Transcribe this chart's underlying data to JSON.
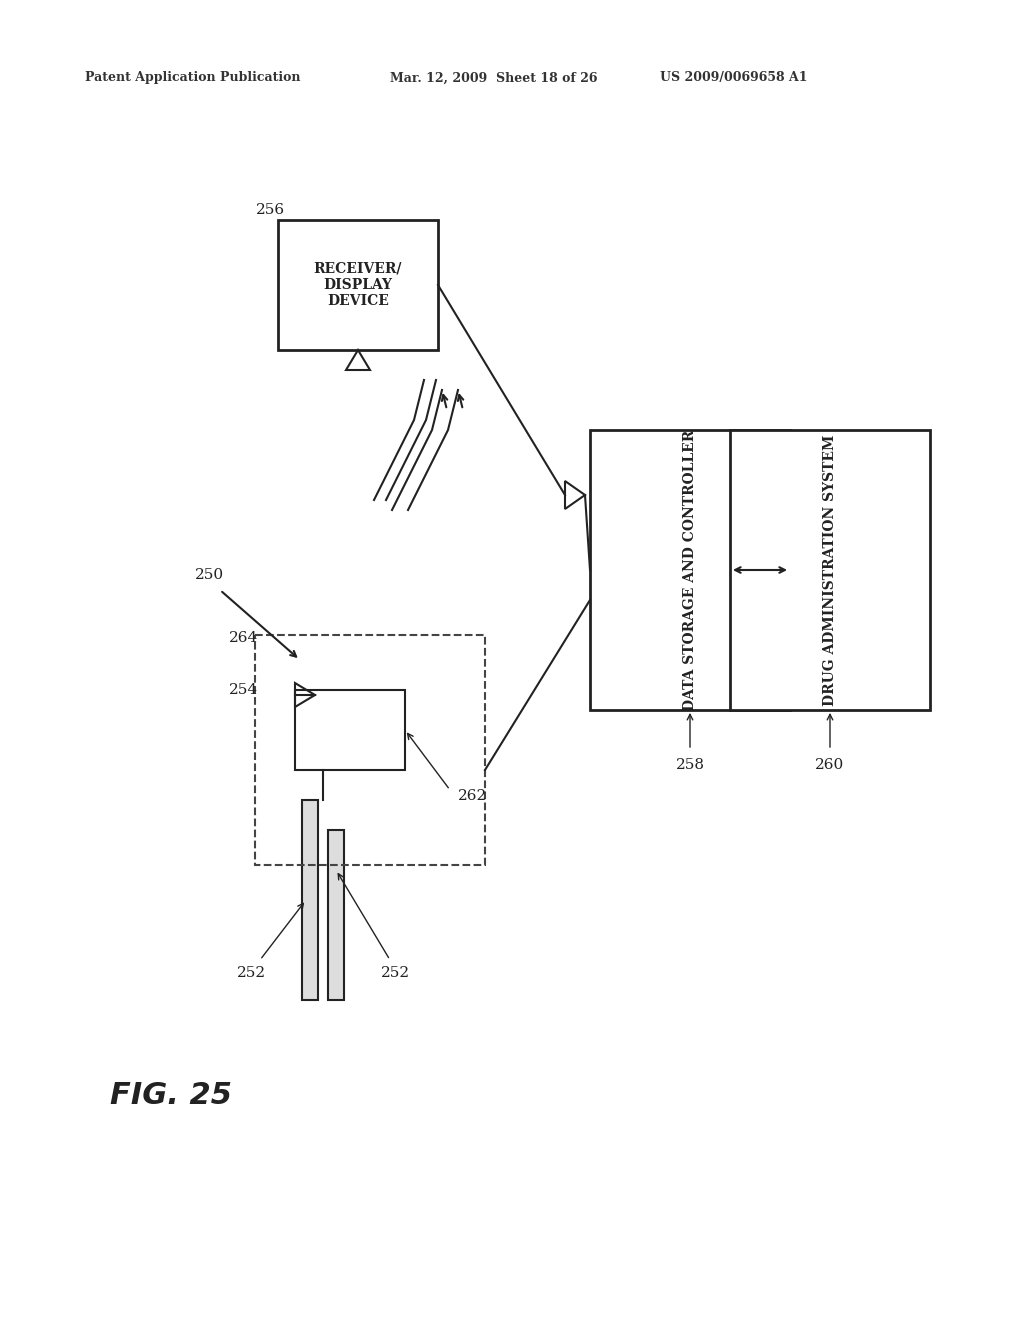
{
  "bg_color": "#ffffff",
  "header_left": "Patent Application Publication",
  "header_mid": "Mar. 12, 2009  Sheet 18 of 26",
  "header_right": "US 2009/0069658 A1",
  "fig_label": "FIG. 25",
  "label_250": "250",
  "label_252a": "252",
  "label_252b": "252",
  "label_254": "254",
  "label_256": "256",
  "label_258": "258",
  "label_260": "260",
  "label_262": "262",
  "label_264": "264",
  "receiver_box_text": "RECEIVER/\nDISPLAY\nDEVICE",
  "data_storage_text": "DATA STORAGE AND CONTROLLER",
  "drug_admin_text": "DRUG ADMINISTRATION SYSTEM"
}
